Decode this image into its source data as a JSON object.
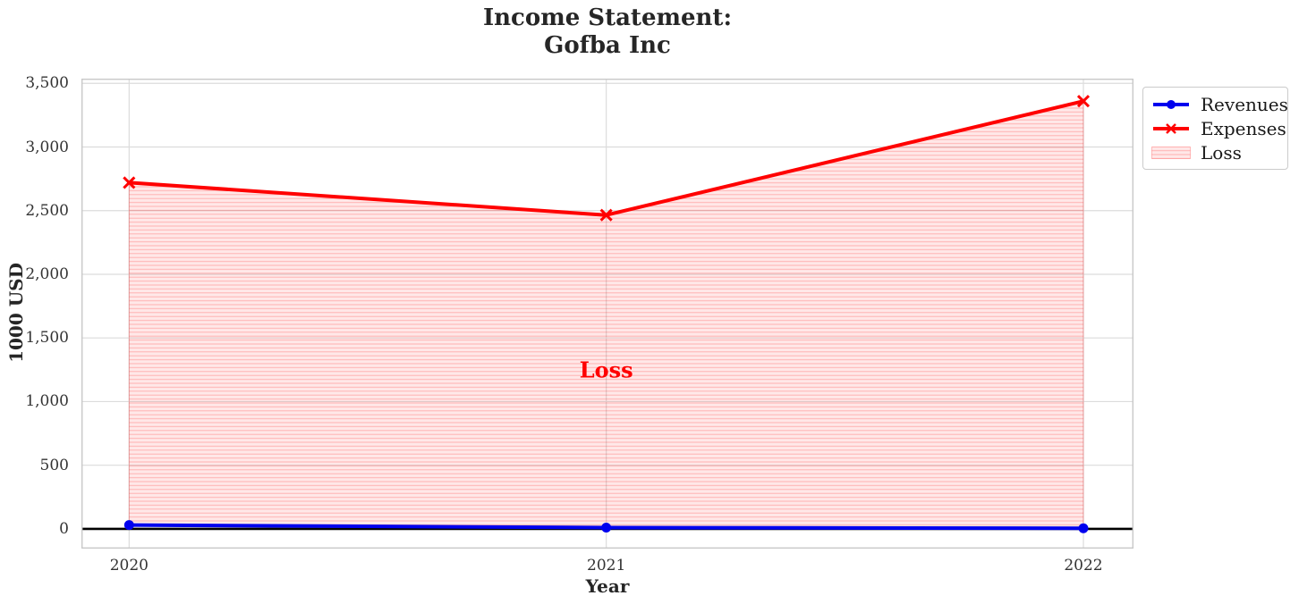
{
  "chart_data": {
    "type": "line",
    "title_lines": [
      "Income Statement:",
      "Gofba Inc"
    ],
    "xlabel": "Year",
    "ylabel": "1000 USD",
    "x": [
      2020,
      2021,
      2022
    ],
    "xtick_labels": [
      "2020",
      "2021",
      "2022"
    ],
    "yticks": [
      0,
      500,
      1000,
      1500,
      2000,
      2500,
      3000,
      3500
    ],
    "ytick_labels": [
      "0",
      "500",
      "1,000",
      "1,500",
      "2,000",
      "2,500",
      "3,000",
      "3,500"
    ],
    "xlim": [
      2019.9,
      2022.105
    ],
    "ylim": [
      -155,
      3537
    ],
    "grid": true,
    "legend_position": "outside-top-right",
    "series": [
      {
        "name": "Revenues",
        "color": "#0000ee",
        "marker": "circle",
        "values": [
          30,
          10,
          5
        ]
      },
      {
        "name": "Expenses",
        "color": "#ff0000",
        "marker": "x",
        "values": [
          2720,
          2465,
          3360
        ]
      }
    ],
    "fill_between": {
      "label": "Loss",
      "annotation": "Loss",
      "annotation_xy": [
        2021,
        1250
      ],
      "face_color": "rgba(255,0,0,0.09)",
      "hatch_color": "rgba(255,0,0,0.24)",
      "hatch": "-"
    },
    "zero_line": {
      "value": 0,
      "color": "#000000"
    }
  },
  "style": {
    "grid_color": "#dcdcdc",
    "spine_color": "#c8c8c8",
    "tick_text_color": "#333333",
    "annotation_color": "#ff0000"
  }
}
